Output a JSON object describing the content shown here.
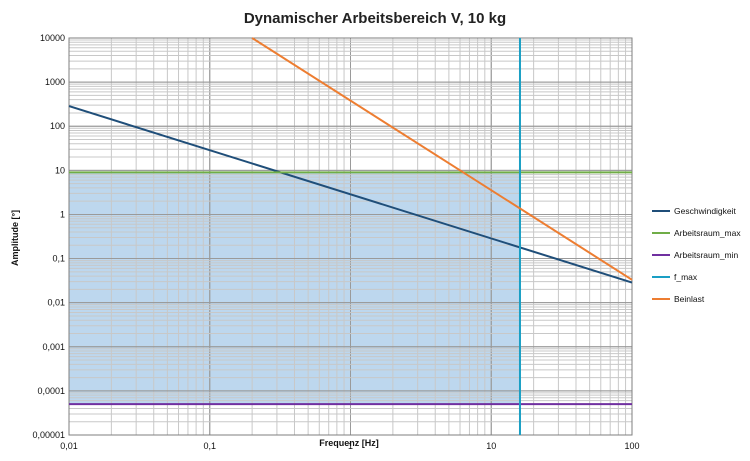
{
  "chart_data": {
    "type": "line",
    "title": "Dynamischer Arbeitsbereich V, 10 kg",
    "xlabel": "Frequenz [Hz]",
    "ylabel": "Amplitude [°]",
    "x_scale": "log",
    "y_scale": "log",
    "xlim": [
      0.01,
      100
    ],
    "ylim": [
      1e-05,
      10000
    ],
    "x_ticks": [
      "0,01",
      "0,1",
      "1",
      "10",
      "100"
    ],
    "y_ticks": [
      "0,00001",
      "0,0001",
      "0,001",
      "0,01",
      "0,1",
      "1",
      "10",
      "100",
      "1000",
      "10000"
    ],
    "grid": true,
    "legend_position": "right",
    "shaded_region": {
      "x": [
        0.01,
        16
      ],
      "y": [
        5e-05,
        9
      ],
      "color": "#bdd7ee"
    },
    "series": [
      {
        "name": "Geschwindigkeit",
        "color": "#1f4e79",
        "x": [
          0.01,
          100
        ],
        "y": [
          286,
          0.0286
        ]
      },
      {
        "name": "Arbeitsraum_max",
        "color": "#70ad47",
        "x": [
          0.01,
          100
        ],
        "y": [
          9,
          9
        ]
      },
      {
        "name": "Arbeitsraum_min",
        "color": "#7030a0",
        "x": [
          0.01,
          100
        ],
        "y": [
          5e-05,
          5e-05
        ]
      },
      {
        "name": "f_max",
        "color": "#1a9fc4",
        "x": [
          16,
          16
        ],
        "y": [
          1e-05,
          10000
        ]
      },
      {
        "name": "Beinlast",
        "color": "#ed7d31",
        "x": [
          0.2,
          100
        ],
        "y": [
          10000,
          0.033
        ]
      }
    ]
  }
}
